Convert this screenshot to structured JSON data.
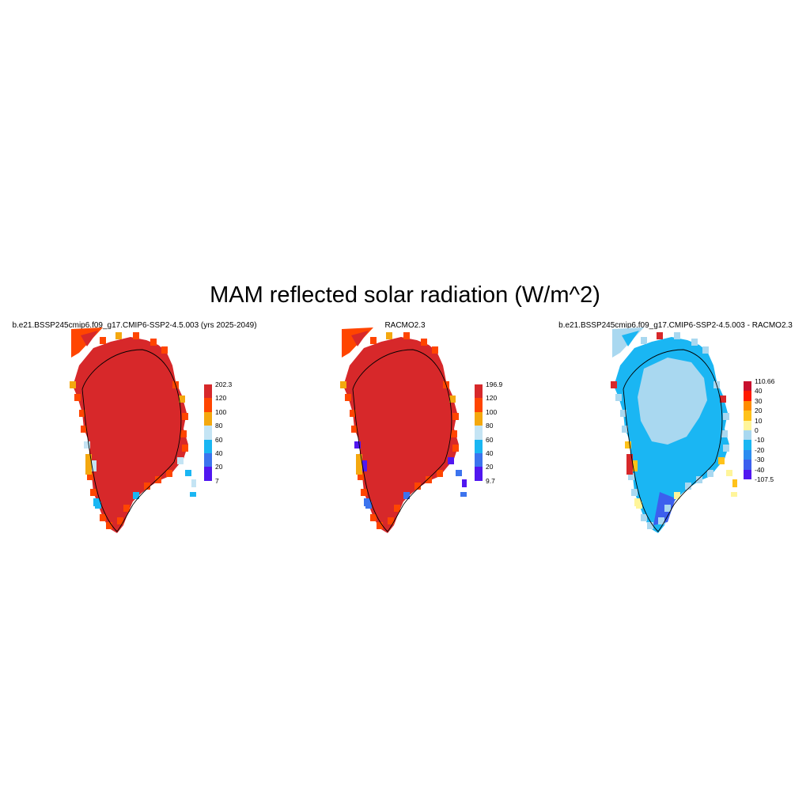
{
  "title": "MAM reflected solar radiation (W/m^2)",
  "panels": [
    {
      "title": "b.e21.BSSP245cmip6.f09_g17.CMIP6-SSP2-4.5.003 (yrs 2025-2049)",
      "colorbar": {
        "labels": [
          "202.3",
          "120",
          "100",
          "80",
          "60",
          "40",
          "20",
          "7"
        ],
        "colors": [
          "#d7282a",
          "#ff4500",
          "#f4a80f",
          "#c4e4f4",
          "#1ab6f3",
          "#3c74ee",
          "#5117f0"
        ]
      }
    },
    {
      "title": "RACMO2.3",
      "colorbar": {
        "labels": [
          "196.9",
          "120",
          "100",
          "80",
          "60",
          "40",
          "20",
          "9.7"
        ],
        "colors": [
          "#d7282a",
          "#ff4500",
          "#f4a80f",
          "#c4e4f4",
          "#1ab6f3",
          "#3c74ee",
          "#5117f0"
        ]
      }
    },
    {
      "title": "b.e21.BSSP245cmip6.f09_g17.CMIP6-SSP2-4.5.003 - RACMO2.3",
      "colorbar": {
        "labels": [
          "110.66",
          "40",
          "30",
          "20",
          "10",
          "0",
          "-10",
          "-20",
          "-30",
          "-40",
          "-107.5"
        ],
        "colors": [
          "#c8102e",
          "#ff1a00",
          "#ff8c00",
          "#ffc21a",
          "#fff59a",
          "#a9d8f0",
          "#1ab6f3",
          "#2b8cf0",
          "#3c5fee",
          "#5117f0"
        ]
      }
    }
  ]
}
